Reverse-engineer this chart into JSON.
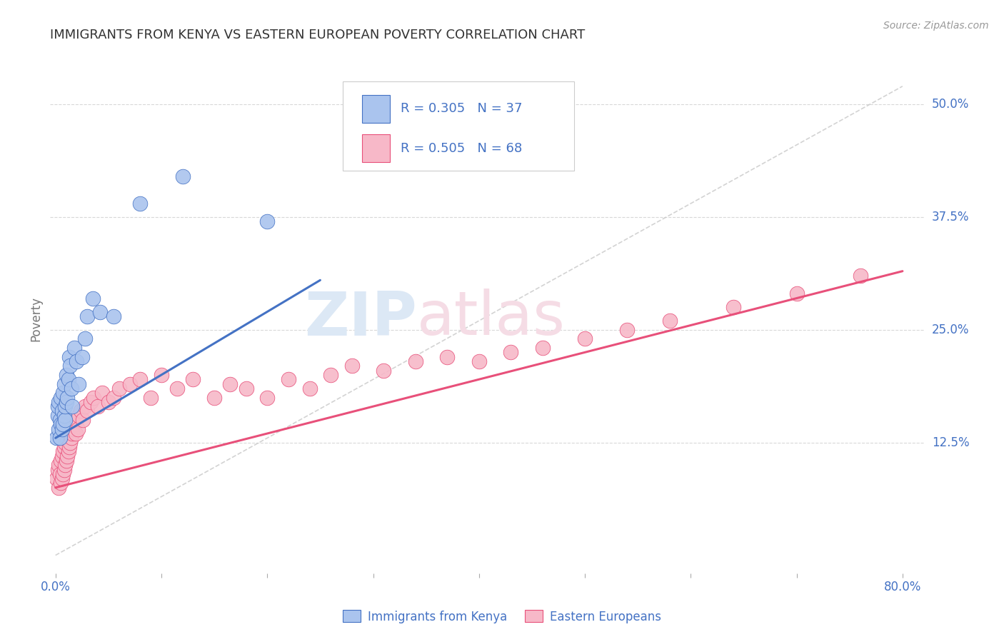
{
  "title": "IMMIGRANTS FROM KENYA VS EASTERN EUROPEAN POVERTY CORRELATION CHART",
  "source": "Source: ZipAtlas.com",
  "ylabel": "Poverty",
  "xlim": [
    -0.005,
    0.82
  ],
  "ylim": [
    -0.02,
    0.545
  ],
  "xticks": [
    0.0,
    0.1,
    0.2,
    0.3,
    0.4,
    0.5,
    0.6,
    0.7,
    0.8
  ],
  "xticklabels": [
    "0.0%",
    "",
    "",
    "",
    "",
    "",
    "",
    "",
    "80.0%"
  ],
  "yticks": [
    0.0,
    0.125,
    0.25,
    0.375,
    0.5
  ],
  "yticklabels": [
    "",
    "12.5%",
    "25.0%",
    "37.5%",
    "50.0%"
  ],
  "kenya_color": "#aac4ee",
  "eastern_color": "#f7b8c8",
  "kenya_line_color": "#4472c4",
  "eastern_line_color": "#e8507a",
  "dashed_line_color": "#c8c8c8",
  "title_color": "#333333",
  "label_color": "#4472c4",
  "kenya_x": [
    0.001,
    0.002,
    0.002,
    0.003,
    0.003,
    0.004,
    0.004,
    0.005,
    0.005,
    0.006,
    0.006,
    0.007,
    0.007,
    0.008,
    0.008,
    0.009,
    0.009,
    0.01,
    0.01,
    0.011,
    0.012,
    0.013,
    0.014,
    0.015,
    0.016,
    0.018,
    0.02,
    0.022,
    0.025,
    0.028,
    0.03,
    0.035,
    0.042,
    0.055,
    0.08,
    0.12,
    0.2
  ],
  "kenya_y": [
    0.13,
    0.155,
    0.165,
    0.14,
    0.17,
    0.13,
    0.15,
    0.145,
    0.175,
    0.14,
    0.16,
    0.145,
    0.18,
    0.155,
    0.19,
    0.15,
    0.165,
    0.17,
    0.2,
    0.175,
    0.195,
    0.22,
    0.21,
    0.185,
    0.165,
    0.23,
    0.215,
    0.19,
    0.22,
    0.24,
    0.265,
    0.285,
    0.27,
    0.265,
    0.39,
    0.42,
    0.37
  ],
  "eastern_x": [
    0.001,
    0.002,
    0.003,
    0.003,
    0.004,
    0.005,
    0.005,
    0.006,
    0.006,
    0.007,
    0.007,
    0.008,
    0.008,
    0.009,
    0.009,
    0.01,
    0.01,
    0.011,
    0.011,
    0.012,
    0.012,
    0.013,
    0.014,
    0.015,
    0.016,
    0.017,
    0.018,
    0.019,
    0.02,
    0.021,
    0.022,
    0.024,
    0.026,
    0.028,
    0.03,
    0.033,
    0.036,
    0.04,
    0.044,
    0.05,
    0.055,
    0.06,
    0.07,
    0.08,
    0.09,
    0.1,
    0.115,
    0.13,
    0.15,
    0.165,
    0.18,
    0.2,
    0.22,
    0.24,
    0.26,
    0.28,
    0.31,
    0.34,
    0.37,
    0.4,
    0.43,
    0.46,
    0.5,
    0.54,
    0.58,
    0.64,
    0.7,
    0.76
  ],
  "eastern_y": [
    0.085,
    0.095,
    0.075,
    0.1,
    0.09,
    0.08,
    0.105,
    0.085,
    0.11,
    0.09,
    0.115,
    0.095,
    0.12,
    0.1,
    0.125,
    0.105,
    0.13,
    0.11,
    0.135,
    0.115,
    0.14,
    0.12,
    0.125,
    0.13,
    0.135,
    0.14,
    0.145,
    0.135,
    0.15,
    0.14,
    0.155,
    0.16,
    0.15,
    0.165,
    0.16,
    0.17,
    0.175,
    0.165,
    0.18,
    0.17,
    0.175,
    0.185,
    0.19,
    0.195,
    0.175,
    0.2,
    0.185,
    0.195,
    0.175,
    0.19,
    0.185,
    0.175,
    0.195,
    0.185,
    0.2,
    0.21,
    0.205,
    0.215,
    0.22,
    0.215,
    0.225,
    0.23,
    0.24,
    0.25,
    0.26,
    0.275,
    0.29,
    0.31
  ],
  "kenya_reg": [
    0.0,
    0.25,
    0.13,
    0.305
  ],
  "eastern_reg": [
    0.0,
    0.8,
    0.075,
    0.315
  ],
  "dash_line": [
    0.0,
    0.8,
    0.0,
    0.52
  ]
}
